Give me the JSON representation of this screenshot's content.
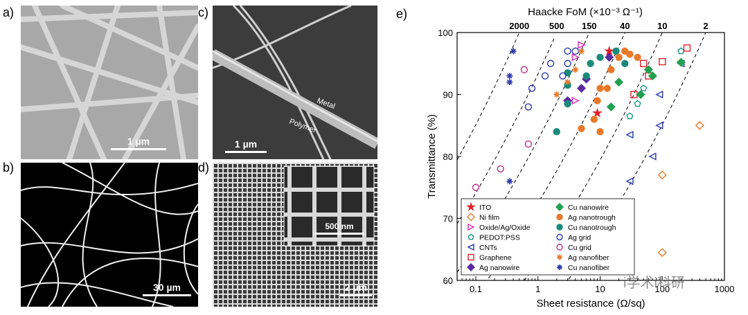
{
  "panels": {
    "a": {
      "label": "a)",
      "scale": "1 µm"
    },
    "b": {
      "label": "b)",
      "scale": "30 µm"
    },
    "c": {
      "label": "c)",
      "scale": "1 µm",
      "metal": "Metal",
      "polymer": "Polymer"
    },
    "d": {
      "label": "d)",
      "scale": "2 µm",
      "inset_scale": "500 nm"
    },
    "e": {
      "label": "e)"
    }
  },
  "watermark": "i学术i科研",
  "chart_data": {
    "type": "scatter",
    "title": "Haacke FoM (×10⁻³ Ω⁻¹)",
    "xlabel": "Sheet resistance (Ω/sq)",
    "ylabel": "Transmittance (%)",
    "xscale": "log",
    "xlim": [
      0.05,
      1000
    ],
    "ylim": [
      60,
      100
    ],
    "xticks": [
      "0.1",
      "1",
      "10",
      "100",
      "1000"
    ],
    "yticks": [
      "60",
      "70",
      "80",
      "90",
      "100"
    ],
    "fom_lines": [
      {
        "label": "2000",
        "value": 2000
      },
      {
        "label": "500",
        "value": 500
      },
      {
        "label": "150",
        "value": 150
      },
      {
        "label": "40",
        "value": 40
      },
      {
        "label": "10",
        "value": 10
      },
      {
        "label": "2",
        "value": 2
      }
    ],
    "legend_position": "bottom-left",
    "series": [
      {
        "name": "ITO",
        "marker": "star",
        "color": "#e0202a",
        "points": [
          [
            9,
            87
          ],
          [
            14,
            97
          ]
        ]
      },
      {
        "name": "Ni film",
        "marker": "diamond-open",
        "color": "#e8792a",
        "points": [
          [
            400,
            85
          ],
          [
            100,
            77
          ],
          [
            100,
            64.5
          ]
        ]
      },
      {
        "name": "Oxide/Ag/Oxide",
        "marker": "tri-right-open",
        "color": "#d62ab0",
        "points": [
          [
            5,
            98
          ],
          [
            4,
            96
          ],
          [
            4,
            89
          ]
        ]
      },
      {
        "name": "PEDOT:PSS",
        "marker": "pentagon-open",
        "color": "#1a9a8a",
        "points": [
          [
            40,
            88.5
          ],
          [
            30,
            86.5
          ],
          [
            50,
            91
          ],
          [
            60,
            94
          ],
          [
            200,
            97
          ]
        ]
      },
      {
        "name": "CNTs",
        "marker": "tri-left-open",
        "color": "#2a3aaa",
        "points": [
          [
            30,
            83.5
          ],
          [
            30,
            76
          ],
          [
            70,
            80
          ],
          [
            90,
            85
          ],
          [
            90,
            90
          ],
          [
            200,
            95
          ]
        ]
      },
      {
        "name": "Graphene",
        "marker": "square-open",
        "color": "#e0202a",
        "points": [
          [
            35,
            90
          ],
          [
            50,
            95
          ],
          [
            60,
            93
          ],
          [
            100,
            95.3
          ],
          [
            250,
            97.5
          ]
        ]
      },
      {
        "name": "Ag nanowire",
        "marker": "diamond",
        "color": "#5a2aa0",
        "points": [
          [
            3,
            89
          ],
          [
            5,
            91
          ],
          [
            6,
            92.5
          ],
          [
            14,
            96
          ]
        ]
      },
      {
        "name": "Cu nanowire",
        "marker": "diamond",
        "color": "#20a050",
        "points": [
          [
            20,
            92
          ],
          [
            15,
            88
          ],
          [
            45,
            90
          ],
          [
            60,
            94
          ],
          [
            70,
            93
          ],
          [
            200,
            95.2
          ]
        ]
      },
      {
        "name": "Ag nanotrough",
        "marker": "circle",
        "color": "#e8792a",
        "points": [
          [
            10,
            84
          ],
          [
            5,
            84.5
          ],
          [
            8,
            86
          ],
          [
            9,
            89
          ],
          [
            10,
            91
          ],
          [
            13,
            91
          ],
          [
            15,
            94
          ],
          [
            20,
            96
          ],
          [
            25,
            97
          ],
          [
            30,
            96.5
          ],
          [
            40,
            96
          ]
        ]
      },
      {
        "name": "Cu nanotrough",
        "marker": "circle",
        "color": "#1a8a7a",
        "points": [
          [
            2,
            84
          ],
          [
            3,
            88.5
          ],
          [
            3,
            91.5
          ],
          [
            3,
            93.5
          ],
          [
            6,
            93
          ],
          [
            7,
            95
          ],
          [
            10,
            96
          ],
          [
            18,
            97
          ],
          [
            25,
            95
          ]
        ]
      },
      {
        "name": "Ag grid",
        "marker": "circle-open",
        "color": "#2a3aaa",
        "points": [
          [
            0.7,
            88
          ],
          [
            0.8,
            91
          ],
          [
            1.3,
            93
          ],
          [
            1.6,
            95
          ],
          [
            2.5,
            93
          ],
          [
            3,
            95
          ],
          [
            3,
            97
          ],
          [
            4,
            97
          ]
        ]
      },
      {
        "name": "Cu grid",
        "marker": "circle-open",
        "color": "#c0308a",
        "points": [
          [
            0.1,
            75
          ],
          [
            0.25,
            78
          ],
          [
            0.7,
            82
          ],
          [
            0.6,
            94
          ]
        ]
      },
      {
        "name": "Ag nanofiber",
        "marker": "asterisk",
        "color": "#e8792a",
        "points": [
          [
            2,
            90
          ],
          [
            3,
            92
          ],
          [
            4,
            94
          ],
          [
            5,
            97
          ]
        ]
      },
      {
        "name": "Cu nanofiber",
        "marker": "asterisk",
        "color": "#2a3aaa",
        "points": [
          [
            0.35,
            76
          ],
          [
            0.35,
            92
          ],
          [
            0.35,
            93
          ],
          [
            0.4,
            97
          ]
        ]
      }
    ]
  }
}
